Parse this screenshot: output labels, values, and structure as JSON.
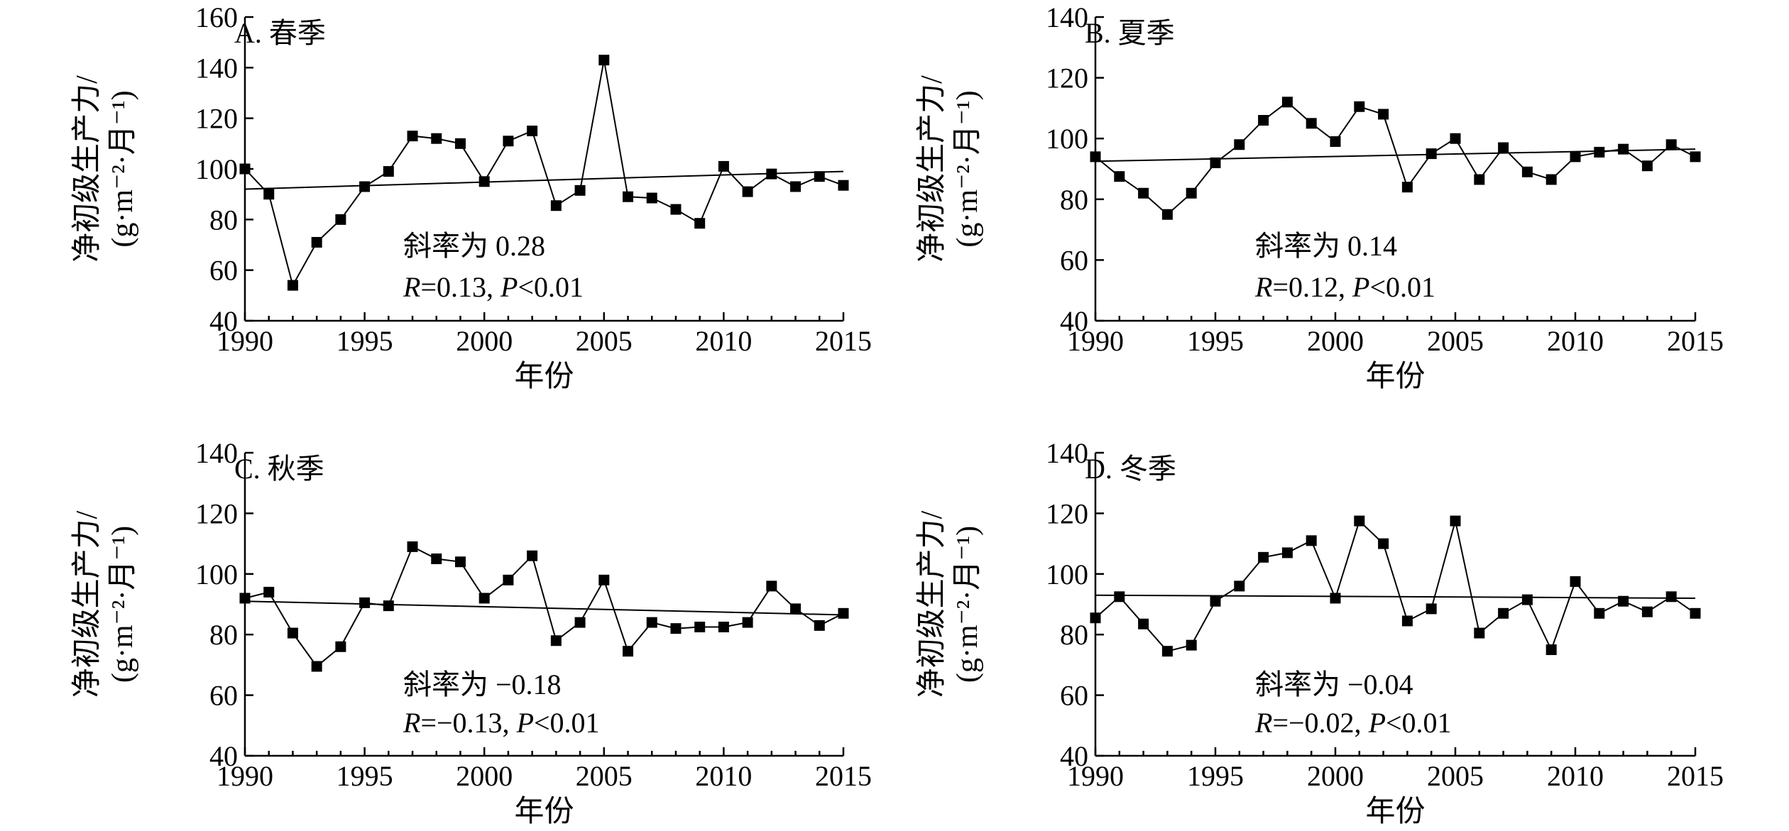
{
  "figure": {
    "ylabel_line1": "净初级生产力/",
    "ylabel_line2": "(g·m⁻²·月⁻¹)",
    "xlabel": "年份"
  },
  "chart_data": [
    {
      "type": "line",
      "panel": "A",
      "title": "A. 春季",
      "xlabel": "年份",
      "ylabel": "净初级生产力/(g·m⁻²·月⁻¹)",
      "xlim": [
        1990,
        2015
      ],
      "ylim": [
        40,
        160
      ],
      "xticks": [
        1990,
        1995,
        2000,
        2005,
        2010,
        2015
      ],
      "yticks": [
        40,
        60,
        80,
        100,
        120,
        140,
        160
      ],
      "x": [
        1990,
        1991,
        1992,
        1993,
        1994,
        1995,
        1996,
        1997,
        1998,
        1999,
        2000,
        2001,
        2002,
        2003,
        2004,
        2005,
        2006,
        2007,
        2008,
        2009,
        2010,
        2011,
        2012,
        2013,
        2014,
        2015
      ],
      "series": [
        {
          "values": [
            100,
            90,
            54,
            71,
            80,
            93,
            99,
            113,
            112,
            110,
            95,
            111,
            115,
            85.5,
            91.5,
            143,
            89,
            88.5,
            84,
            78.5,
            101,
            91,
            98,
            93,
            97,
            93.5
          ]
        }
      ],
      "trend": {
        "start": [
          1990,
          92
        ],
        "end": [
          2015,
          99
        ]
      },
      "annotation": {
        "line1": "斜率为 0.28",
        "r_symbol": "R",
        "r_value": "=0.13, ",
        "p_symbol": "P",
        "p_value": "<0.01"
      }
    },
    {
      "type": "line",
      "panel": "B",
      "title": "B. 夏季",
      "xlabel": "年份",
      "ylabel": "净初级生产力/(g·m⁻²·月⁻¹)",
      "xlim": [
        1990,
        2015
      ],
      "ylim": [
        40,
        140
      ],
      "xticks": [
        1990,
        1995,
        2000,
        2005,
        2010,
        2015
      ],
      "yticks": [
        40,
        60,
        80,
        100,
        120,
        140
      ],
      "x": [
        1990,
        1991,
        1992,
        1993,
        1994,
        1995,
        1996,
        1997,
        1998,
        1999,
        2000,
        2001,
        2002,
        2003,
        2004,
        2005,
        2006,
        2007,
        2008,
        2009,
        2010,
        2011,
        2012,
        2013,
        2014,
        2015
      ],
      "series": [
        {
          "values": [
            94,
            87.5,
            82,
            75,
            82,
            92,
            98,
            106,
            112,
            105,
            99,
            110.5,
            108,
            84,
            95,
            100,
            86.5,
            97,
            89,
            86.5,
            94,
            95.5,
            96.5,
            91,
            98,
            94
          ]
        }
      ],
      "trend": {
        "start": [
          1990,
          92.5
        ],
        "end": [
          2015,
          96.5
        ]
      },
      "annotation": {
        "line1": "斜率为 0.14",
        "r_symbol": "R",
        "r_value": "=0.12, ",
        "p_symbol": "P",
        "p_value": "<0.01"
      }
    },
    {
      "type": "line",
      "panel": "C",
      "title": "C. 秋季",
      "xlabel": "年份",
      "ylabel": "净初级生产力/(g·m⁻²·月⁻¹)",
      "xlim": [
        1990,
        2015
      ],
      "ylim": [
        40,
        140
      ],
      "xticks": [
        1990,
        1995,
        2000,
        2005,
        2010,
        2015
      ],
      "yticks": [
        40,
        60,
        80,
        100,
        120,
        140
      ],
      "x": [
        1990,
        1991,
        1992,
        1993,
        1994,
        1995,
        1996,
        1997,
        1998,
        1999,
        2000,
        2001,
        2002,
        2003,
        2004,
        2005,
        2006,
        2007,
        2008,
        2009,
        2010,
        2011,
        2012,
        2013,
        2014,
        2015
      ],
      "series": [
        {
          "values": [
            92,
            94,
            80.5,
            69.5,
            76,
            90.5,
            89.5,
            109,
            105,
            104,
            92,
            98,
            106,
            78,
            84,
            98,
            74.5,
            84,
            82,
            82.5,
            82.5,
            84,
            96,
            88.5,
            83,
            87
          ]
        }
      ],
      "trend": {
        "start": [
          1990,
          91
        ],
        "end": [
          2015,
          86.5
        ]
      },
      "annotation": {
        "line1": "斜率为 −0.18",
        "r_symbol": "R",
        "r_value": "=−0.13, ",
        "p_symbol": "P",
        "p_value": "<0.01"
      }
    },
    {
      "type": "line",
      "panel": "D",
      "title": "D. 冬季",
      "xlabel": "年份",
      "ylabel": "净初级生产力/(g·m⁻²·月⁻¹)",
      "xlim": [
        1990,
        2015
      ],
      "ylim": [
        40,
        140
      ],
      "xticks": [
        1990,
        1995,
        2000,
        2005,
        2010,
        2015
      ],
      "yticks": [
        40,
        60,
        80,
        100,
        120,
        140
      ],
      "x": [
        1990,
        1991,
        1992,
        1993,
        1994,
        1995,
        1996,
        1997,
        1998,
        1999,
        2000,
        2001,
        2002,
        2003,
        2004,
        2005,
        2006,
        2007,
        2008,
        2009,
        2010,
        2011,
        2012,
        2013,
        2014,
        2015
      ],
      "series": [
        {
          "values": [
            85.5,
            92.5,
            83.5,
            74.5,
            76.5,
            91,
            96,
            105.5,
            107,
            111,
            92,
            117.5,
            110,
            84.5,
            88.5,
            117.5,
            80.5,
            87,
            91.5,
            75,
            97.5,
            87,
            91,
            87.5,
            92.5,
            87
          ]
        }
      ],
      "trend": {
        "start": [
          1990,
          93
        ],
        "end": [
          2015,
          92
        ]
      },
      "annotation": {
        "line1": "斜率为 −0.04",
        "r_symbol": "R",
        "r_value": "=−0.02, ",
        "p_symbol": "P",
        "p_value": "<0.01"
      }
    }
  ]
}
